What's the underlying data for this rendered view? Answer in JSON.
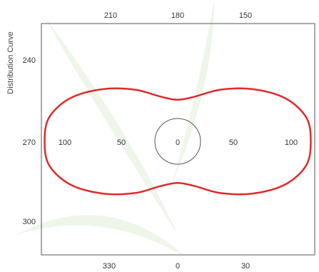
{
  "chart_data": {
    "type": "polar-line",
    "ylabel": "Distribution Curve",
    "top_ticks": [
      "210",
      "180",
      "150"
    ],
    "bottom_ticks": [
      "330",
      "0",
      "30"
    ],
    "left_ticks": [
      "240",
      "270",
      "300"
    ],
    "ring_labels_left": [
      "100",
      "50"
    ],
    "ring_labels_right": [
      "50",
      "100"
    ],
    "center_label": "0",
    "inner_circle_radius": 20,
    "rings": [
      0,
      50,
      100
    ],
    "grid": false,
    "series": [
      {
        "color": "#e02a2a",
        "angles": [
          0,
          15,
          30,
          45,
          60,
          75,
          90,
          105,
          120,
          135,
          150,
          165,
          180,
          195,
          210,
          225,
          240,
          255,
          270,
          285,
          300,
          315,
          330,
          345
        ],
        "values": [
          53,
          59,
          76,
          94,
          110,
          118,
          118,
          118,
          110,
          94,
          76,
          59,
          53,
          59,
          76,
          94,
          110,
          118,
          118,
          118,
          110,
          94,
          76,
          59
        ]
      }
    ]
  },
  "colors": {
    "curve": "#e02a2a",
    "frame": "#555555",
    "inner_circle": "#555555",
    "text": "#333333",
    "watermark": "#cfe6c4"
  }
}
